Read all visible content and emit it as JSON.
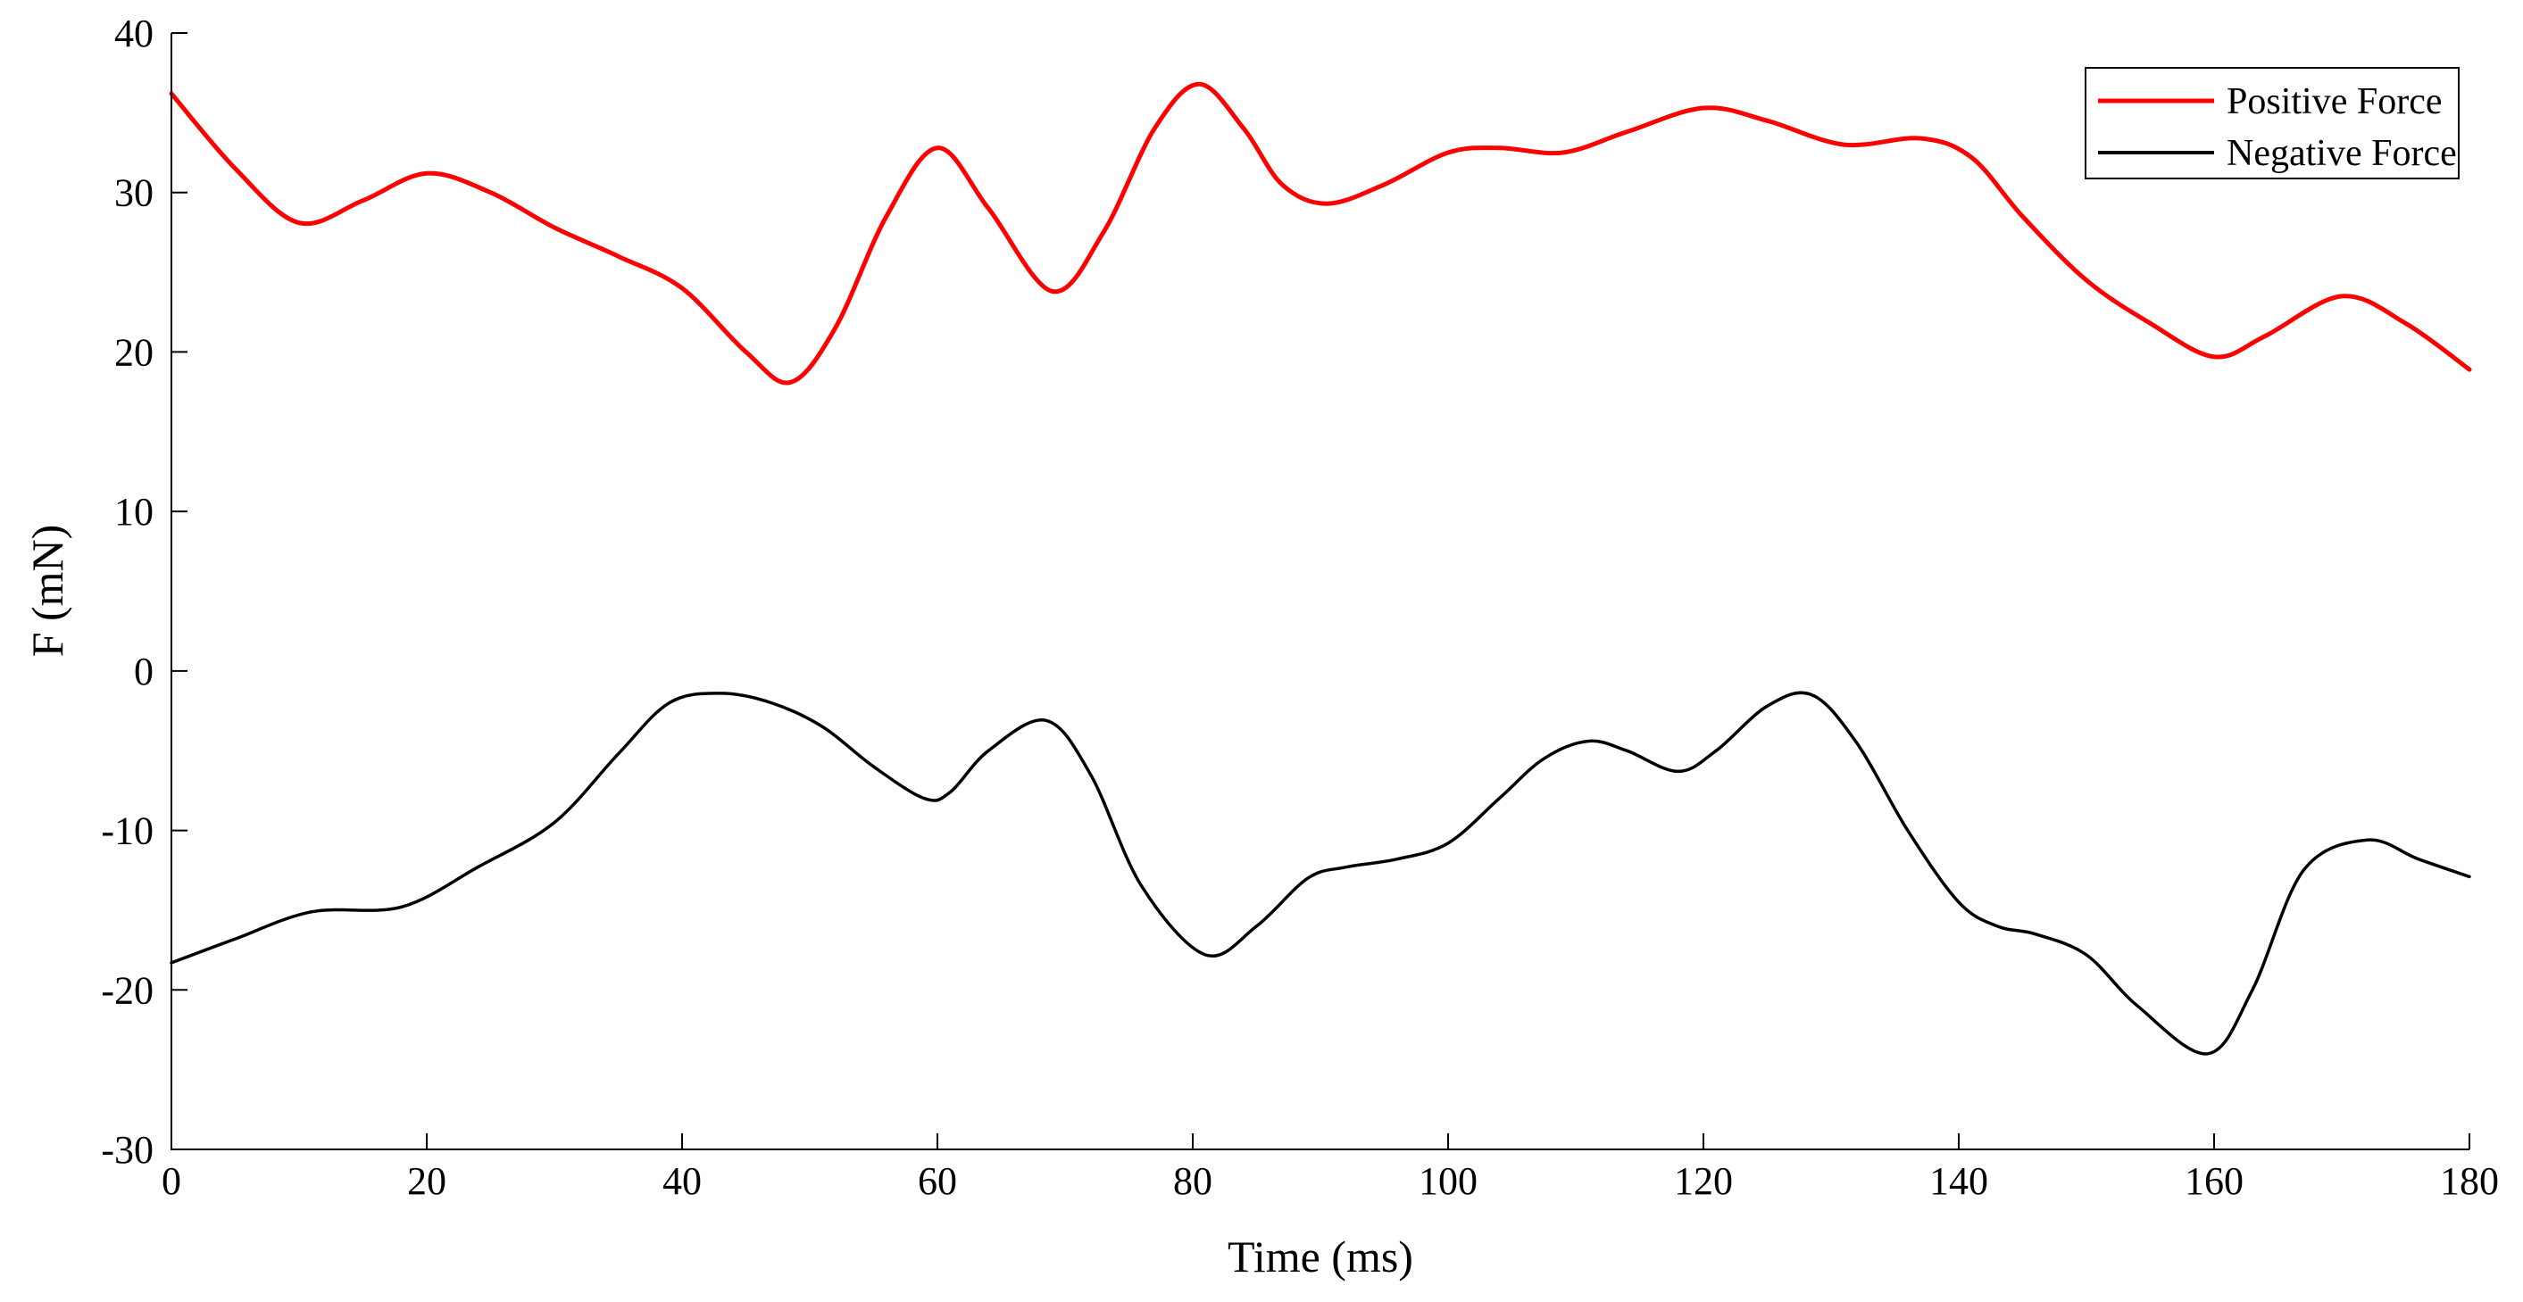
{
  "chart_data": {
    "type": "line",
    "title": "",
    "xlabel": "Time (ms)",
    "ylabel": "F (mN)",
    "xlim": [
      0,
      180
    ],
    "ylim": [
      -30,
      40
    ],
    "xticks": [
      0,
      20,
      40,
      60,
      80,
      100,
      120,
      140,
      160,
      180
    ],
    "yticks": [
      -30,
      -20,
      -10,
      0,
      10,
      20,
      30,
      40
    ],
    "grid": false,
    "legend_position": "top-right",
    "series": [
      {
        "name": "Positive Force",
        "color": "#ff0000",
        "x": [
          0,
          5,
          10,
          15,
          20,
          25,
          30,
          35,
          40,
          45,
          48.5,
          52,
          56,
          60,
          64,
          69,
          73,
          77,
          80.5,
          84,
          87,
          90.5,
          95,
          100,
          104,
          109,
          114,
          120,
          125,
          131,
          137,
          141,
          145,
          150,
          155,
          160,
          164,
          170,
          175,
          180
        ],
        "y": [
          36.2,
          31.5,
          28.1,
          29.5,
          31.2,
          30.0,
          27.8,
          26.0,
          24.0,
          20.0,
          18.1,
          21.5,
          28.5,
          32.8,
          29.0,
          23.8,
          27.5,
          34.0,
          36.8,
          34.0,
          30.5,
          29.3,
          30.5,
          32.5,
          32.8,
          32.5,
          33.8,
          35.3,
          34.5,
          33.0,
          33.4,
          32.2,
          28.5,
          24.5,
          21.8,
          19.7,
          21.0,
          23.5,
          21.8,
          18.9
        ]
      },
      {
        "name": "Negative Force",
        "color": "#000000",
        "x": [
          0,
          5,
          11,
          18,
          24,
          30,
          35,
          39,
          43,
          47,
          51,
          55,
          59,
          61,
          64,
          68.5,
          72,
          76,
          81,
          85,
          89,
          92,
          96,
          100,
          104,
          107.5,
          111,
          114,
          118,
          121,
          125,
          128.5,
          132,
          136,
          140,
          143,
          146,
          150,
          154,
          159.5,
          163,
          167,
          172,
          176,
          180
        ],
        "y": [
          -18.3,
          -16.8,
          -15.1,
          -14.8,
          -12.3,
          -9.5,
          -5.2,
          -2.0,
          -1.4,
          -2.0,
          -3.5,
          -6.0,
          -8.0,
          -7.6,
          -5.0,
          -3.1,
          -6.5,
          -13.5,
          -17.8,
          -16.0,
          -13.0,
          -12.3,
          -11.8,
          -10.8,
          -8.0,
          -5.5,
          -4.4,
          -5.0,
          -6.3,
          -5.0,
          -2.2,
          -1.5,
          -4.5,
          -10.0,
          -14.5,
          -16.0,
          -16.5,
          -17.8,
          -21.0,
          -24.0,
          -20.0,
          -12.5,
          -10.6,
          -11.8,
          -12.9
        ]
      }
    ]
  }
}
